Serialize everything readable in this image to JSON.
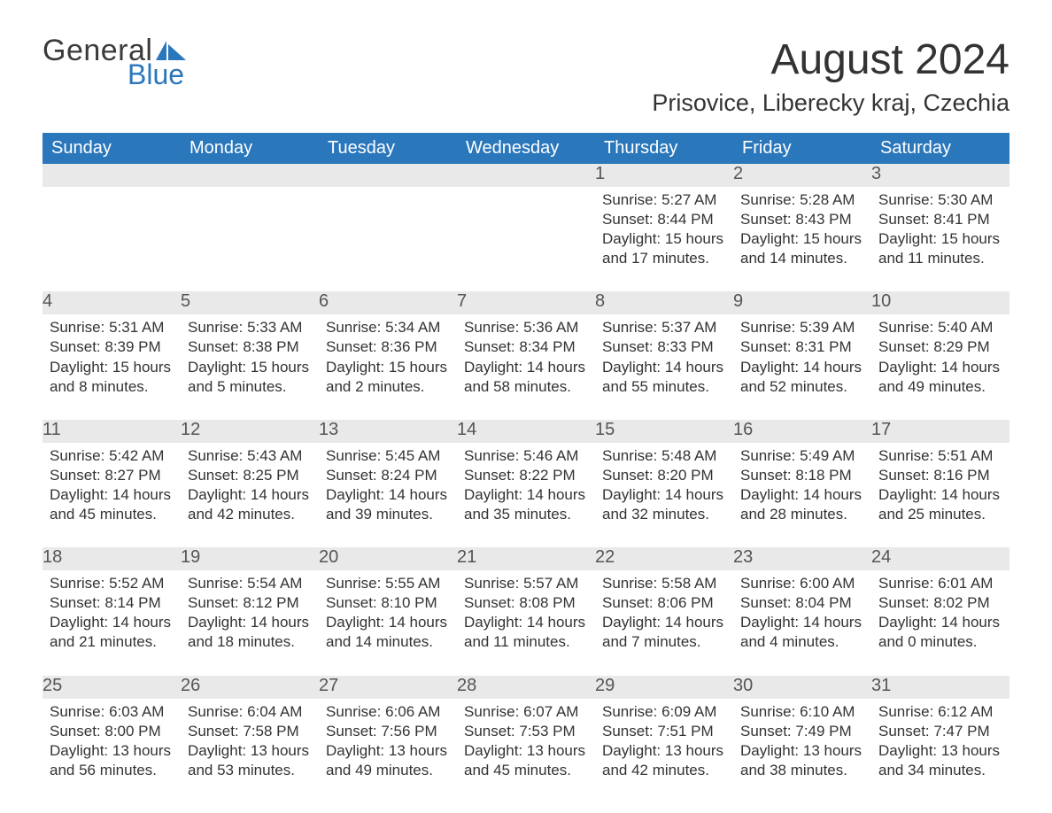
{
  "logo": {
    "text1": "General",
    "text2": "Blue",
    "brand_color": "#2a77bb"
  },
  "title": "August 2024",
  "location": "Prisovice, Liberecky kraj, Czechia",
  "colors": {
    "header_bg": "#2a77bb",
    "header_text": "#ffffff",
    "band_bg": "#e9e9e9",
    "text": "#333333",
    "page_bg": "#ffffff"
  },
  "typography": {
    "title_fontsize": 48,
    "location_fontsize": 27,
    "dayheader_fontsize": 20,
    "daynum_fontsize": 20,
    "body_fontsize": 17
  },
  "layout": {
    "columns": 7,
    "rows": 5,
    "cell_min_height": 96,
    "header_row_height": 32
  },
  "day_headers": [
    "Sunday",
    "Monday",
    "Tuesday",
    "Wednesday",
    "Thursday",
    "Friday",
    "Saturday"
  ],
  "weeks": [
    [
      {
        "day": "",
        "sunrise": "",
        "sunset": "",
        "daylight": ""
      },
      {
        "day": "",
        "sunrise": "",
        "sunset": "",
        "daylight": ""
      },
      {
        "day": "",
        "sunrise": "",
        "sunset": "",
        "daylight": ""
      },
      {
        "day": "",
        "sunrise": "",
        "sunset": "",
        "daylight": ""
      },
      {
        "day": "1",
        "sunrise": "Sunrise: 5:27 AM",
        "sunset": "Sunset: 8:44 PM",
        "daylight": "Daylight: 15 hours and 17 minutes."
      },
      {
        "day": "2",
        "sunrise": "Sunrise: 5:28 AM",
        "sunset": "Sunset: 8:43 PM",
        "daylight": "Daylight: 15 hours and 14 minutes."
      },
      {
        "day": "3",
        "sunrise": "Sunrise: 5:30 AM",
        "sunset": "Sunset: 8:41 PM",
        "daylight": "Daylight: 15 hours and 11 minutes."
      }
    ],
    [
      {
        "day": "4",
        "sunrise": "Sunrise: 5:31 AM",
        "sunset": "Sunset: 8:39 PM",
        "daylight": "Daylight: 15 hours and 8 minutes."
      },
      {
        "day": "5",
        "sunrise": "Sunrise: 5:33 AM",
        "sunset": "Sunset: 8:38 PM",
        "daylight": "Daylight: 15 hours and 5 minutes."
      },
      {
        "day": "6",
        "sunrise": "Sunrise: 5:34 AM",
        "sunset": "Sunset: 8:36 PM",
        "daylight": "Daylight: 15 hours and 2 minutes."
      },
      {
        "day": "7",
        "sunrise": "Sunrise: 5:36 AM",
        "sunset": "Sunset: 8:34 PM",
        "daylight": "Daylight: 14 hours and 58 minutes."
      },
      {
        "day": "8",
        "sunrise": "Sunrise: 5:37 AM",
        "sunset": "Sunset: 8:33 PM",
        "daylight": "Daylight: 14 hours and 55 minutes."
      },
      {
        "day": "9",
        "sunrise": "Sunrise: 5:39 AM",
        "sunset": "Sunset: 8:31 PM",
        "daylight": "Daylight: 14 hours and 52 minutes."
      },
      {
        "day": "10",
        "sunrise": "Sunrise: 5:40 AM",
        "sunset": "Sunset: 8:29 PM",
        "daylight": "Daylight: 14 hours and 49 minutes."
      }
    ],
    [
      {
        "day": "11",
        "sunrise": "Sunrise: 5:42 AM",
        "sunset": "Sunset: 8:27 PM",
        "daylight": "Daylight: 14 hours and 45 minutes."
      },
      {
        "day": "12",
        "sunrise": "Sunrise: 5:43 AM",
        "sunset": "Sunset: 8:25 PM",
        "daylight": "Daylight: 14 hours and 42 minutes."
      },
      {
        "day": "13",
        "sunrise": "Sunrise: 5:45 AM",
        "sunset": "Sunset: 8:24 PM",
        "daylight": "Daylight: 14 hours and 39 minutes."
      },
      {
        "day": "14",
        "sunrise": "Sunrise: 5:46 AM",
        "sunset": "Sunset: 8:22 PM",
        "daylight": "Daylight: 14 hours and 35 minutes."
      },
      {
        "day": "15",
        "sunrise": "Sunrise: 5:48 AM",
        "sunset": "Sunset: 8:20 PM",
        "daylight": "Daylight: 14 hours and 32 minutes."
      },
      {
        "day": "16",
        "sunrise": "Sunrise: 5:49 AM",
        "sunset": "Sunset: 8:18 PM",
        "daylight": "Daylight: 14 hours and 28 minutes."
      },
      {
        "day": "17",
        "sunrise": "Sunrise: 5:51 AM",
        "sunset": "Sunset: 8:16 PM",
        "daylight": "Daylight: 14 hours and 25 minutes."
      }
    ],
    [
      {
        "day": "18",
        "sunrise": "Sunrise: 5:52 AM",
        "sunset": "Sunset: 8:14 PM",
        "daylight": "Daylight: 14 hours and 21 minutes."
      },
      {
        "day": "19",
        "sunrise": "Sunrise: 5:54 AM",
        "sunset": "Sunset: 8:12 PM",
        "daylight": "Daylight: 14 hours and 18 minutes."
      },
      {
        "day": "20",
        "sunrise": "Sunrise: 5:55 AM",
        "sunset": "Sunset: 8:10 PM",
        "daylight": "Daylight: 14 hours and 14 minutes."
      },
      {
        "day": "21",
        "sunrise": "Sunrise: 5:57 AM",
        "sunset": "Sunset: 8:08 PM",
        "daylight": "Daylight: 14 hours and 11 minutes."
      },
      {
        "day": "22",
        "sunrise": "Sunrise: 5:58 AM",
        "sunset": "Sunset: 8:06 PM",
        "daylight": "Daylight: 14 hours and 7 minutes."
      },
      {
        "day": "23",
        "sunrise": "Sunrise: 6:00 AM",
        "sunset": "Sunset: 8:04 PM",
        "daylight": "Daylight: 14 hours and 4 minutes."
      },
      {
        "day": "24",
        "sunrise": "Sunrise: 6:01 AM",
        "sunset": "Sunset: 8:02 PM",
        "daylight": "Daylight: 14 hours and 0 minutes."
      }
    ],
    [
      {
        "day": "25",
        "sunrise": "Sunrise: 6:03 AM",
        "sunset": "Sunset: 8:00 PM",
        "daylight": "Daylight: 13 hours and 56 minutes."
      },
      {
        "day": "26",
        "sunrise": "Sunrise: 6:04 AM",
        "sunset": "Sunset: 7:58 PM",
        "daylight": "Daylight: 13 hours and 53 minutes."
      },
      {
        "day": "27",
        "sunrise": "Sunrise: 6:06 AM",
        "sunset": "Sunset: 7:56 PM",
        "daylight": "Daylight: 13 hours and 49 minutes."
      },
      {
        "day": "28",
        "sunrise": "Sunrise: 6:07 AM",
        "sunset": "Sunset: 7:53 PM",
        "daylight": "Daylight: 13 hours and 45 minutes."
      },
      {
        "day": "29",
        "sunrise": "Sunrise: 6:09 AM",
        "sunset": "Sunset: 7:51 PM",
        "daylight": "Daylight: 13 hours and 42 minutes."
      },
      {
        "day": "30",
        "sunrise": "Sunrise: 6:10 AM",
        "sunset": "Sunset: 7:49 PM",
        "daylight": "Daylight: 13 hours and 38 minutes."
      },
      {
        "day": "31",
        "sunrise": "Sunrise: 6:12 AM",
        "sunset": "Sunset: 7:47 PM",
        "daylight": "Daylight: 13 hours and 34 minutes."
      }
    ]
  ]
}
